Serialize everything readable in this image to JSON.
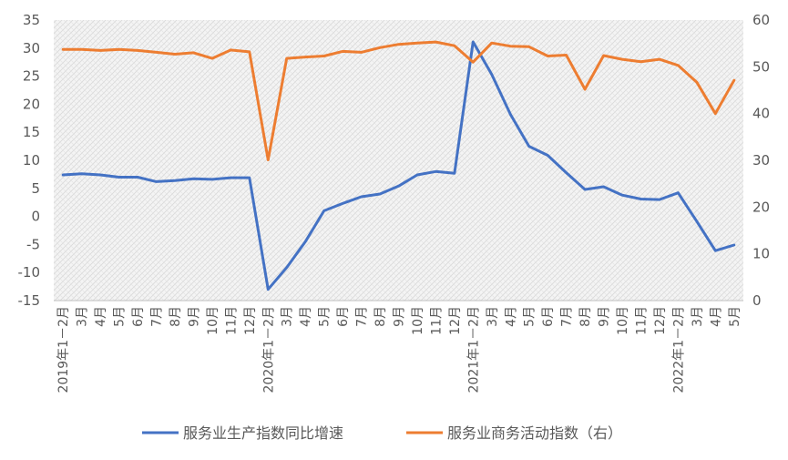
{
  "chart_data": {
    "type": "line",
    "categories": [
      "2019年1－2月",
      "3月",
      "4月",
      "5月",
      "6月",
      "7月",
      "8月",
      "9月",
      "10月",
      "11月",
      "12月",
      "2020年1－2月",
      "3月",
      "4月",
      "5月",
      "6月",
      "7月",
      "8月",
      "9月",
      "10月",
      "11月",
      "12月",
      "2021年1－2月",
      "3月",
      "4月",
      "5月",
      "6月",
      "7月",
      "8月",
      "9月",
      "10月",
      "11月",
      "12月",
      "2022年1－2月",
      "3月",
      "4月",
      "5月"
    ],
    "series": [
      {
        "name": "服务业生产指数同比增速",
        "axis": "left",
        "color": "#4472C4",
        "values": [
          7.4,
          7.6,
          7.4,
          7.0,
          7.0,
          6.2,
          6.4,
          6.7,
          6.6,
          6.9,
          6.9,
          -13.0,
          -9.1,
          -4.5,
          1.0,
          2.3,
          3.5,
          4.0,
          5.4,
          7.4,
          8.0,
          7.7,
          31.1,
          25.3,
          18.2,
          12.5,
          10.9,
          7.8,
          4.8,
          5.3,
          3.8,
          3.1,
          3.0,
          4.2,
          -0.9,
          -6.1,
          -5.1
        ]
      },
      {
        "name": "服务业商务活动指数（右）",
        "axis": "right",
        "color": "#ED7D31",
        "values": [
          53.7,
          53.7,
          53.5,
          53.7,
          53.5,
          53.1,
          52.7,
          53.0,
          51.8,
          53.6,
          53.2,
          30.1,
          51.8,
          52.1,
          52.3,
          53.3,
          53.1,
          54.1,
          54.8,
          55.1,
          55.3,
          54.5,
          51.0,
          55.1,
          54.4,
          54.3,
          52.3,
          52.5,
          45.2,
          52.4,
          51.6,
          51.1,
          51.6,
          50.3,
          46.7,
          40.0,
          47.1
        ]
      }
    ],
    "left_axis": {
      "min": -15,
      "max": 35,
      "step": 5,
      "ticks": [
        "-15",
        "-10",
        "-5",
        "0",
        "5",
        "10",
        "15",
        "20",
        "25",
        "30",
        "35"
      ]
    },
    "right_axis": {
      "min": 0,
      "max": 60,
      "step": 10,
      "ticks": [
        "0",
        "10",
        "20",
        "30",
        "40",
        "50",
        "60"
      ]
    },
    "grid": false,
    "plot_background": "hatched light gray",
    "legend_position": "bottom"
  }
}
